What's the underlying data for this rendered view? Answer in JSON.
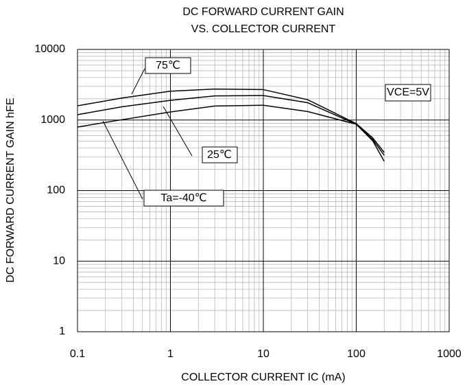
{
  "chart_data": {
    "type": "line",
    "title": "DC FORWARD CURRENT GAIN",
    "subtitle": "VS. COLLECTOR CURRENT",
    "x_label": "COLLECTOR CURRENT IC (mA)",
    "y_label": "DC FORWARD CURRENT GAIN hFE",
    "annotations": [
      "75℃",
      "25℃",
      "Ta=-40℃",
      "VCE=5V"
    ],
    "x": [
      0.1,
      0.3,
      1,
      3,
      10,
      30,
      100,
      150,
      200
    ],
    "series": [
      {
        "name": "75℃",
        "color": "#000000",
        "values": [
          1590,
          2050,
          2560,
          2750,
          2700,
          1940,
          890,
          560,
          347
        ]
      },
      {
        "name": "25℃",
        "color": "#000000",
        "values": [
          1190,
          1540,
          1900,
          2200,
          2220,
          1760,
          870,
          530,
          316
        ]
      },
      {
        "name": "Ta=-40℃",
        "color": "#000000",
        "values": [
          795,
          1010,
          1300,
          1580,
          1620,
          1320,
          870,
          510,
          260
        ]
      }
    ],
    "xlim": [
      0.1,
      1000
    ],
    "ylim": [
      1,
      10000
    ],
    "xticks": [
      0.1,
      1,
      10,
      100,
      1000
    ],
    "yticks": [
      1,
      10,
      100,
      1000,
      10000
    ],
    "xscale": "log",
    "yscale": "log",
    "grid": true,
    "minor_grid": true
  }
}
